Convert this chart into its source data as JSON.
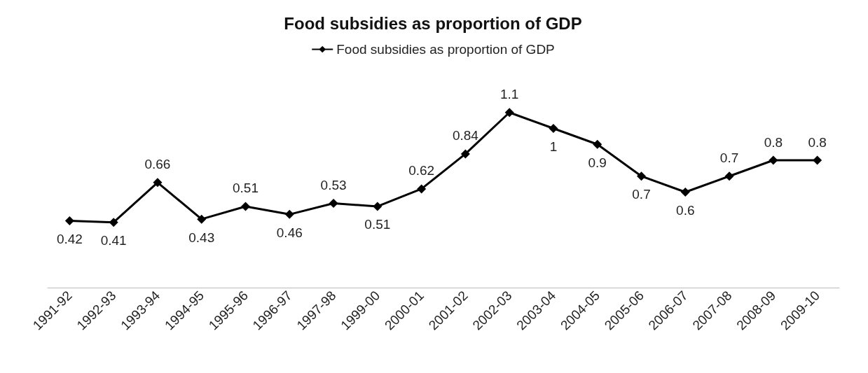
{
  "chart_data": {
    "type": "line",
    "title": "Food subsidies as proportion of GDP",
    "categories": [
      "1991-92",
      "1992-93",
      "1993-94",
      "1994-95",
      "1995-96",
      "1996-97",
      "1997-98",
      "1999-00",
      "2000-01",
      "2001-02",
      "2002-03",
      "2003-04",
      "2004-05",
      "2005-06",
      "2006-07",
      "2007-08",
      "2008-09",
      "2009-10"
    ],
    "series": [
      {
        "name": "Food subsidies as proportion of GDP",
        "color": "#000000",
        "values": [
          0.42,
          0.41,
          0.66,
          0.43,
          0.51,
          0.46,
          0.53,
          0.51,
          0.62,
          0.84,
          1.1,
          1,
          0.9,
          0.7,
          0.6,
          0.7,
          0.8,
          0.8
        ]
      }
    ],
    "tick_labels": "x",
    "data_labels": true,
    "legend": "top",
    "marker": "diamond",
    "line_style": "solid",
    "grid": false
  }
}
